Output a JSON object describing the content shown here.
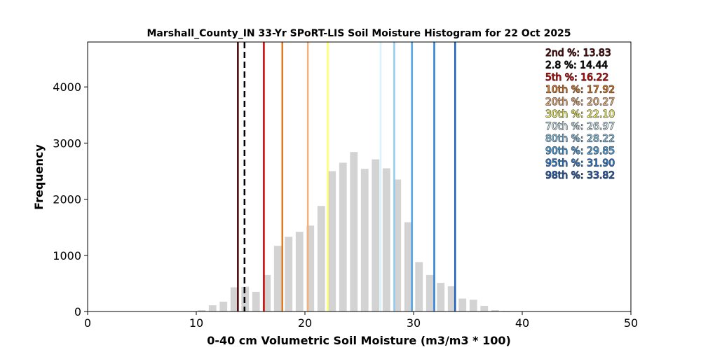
{
  "chart_data": {
    "type": "bar",
    "title": "Marshall_County_IN 33-Yr SPoRT-LIS Soil Moisture Histogram for 22 Oct 2025",
    "xlabel": "0-40 cm Volumetric Soil Moisture (m3/m3 * 100)",
    "ylabel": "Frequency",
    "xlim": [
      0,
      50
    ],
    "ylim": [
      0,
      4800
    ],
    "xticks": [
      "0",
      "10",
      "20",
      "30",
      "40",
      "50"
    ],
    "yticks": [
      "0",
      "1000",
      "2000",
      "3000",
      "4000"
    ],
    "bar_color": "#d3d3d3",
    "bin_width": 1.0,
    "bar_width": 0.7,
    "bins": [
      10.5,
      11.5,
      12.5,
      13.5,
      14.5,
      15.5,
      16.5,
      17.5,
      18.5,
      19.5,
      20.5,
      21.5,
      22.5,
      23.5,
      24.5,
      25.5,
      26.5,
      27.5,
      28.5,
      29.5,
      30.5,
      31.5,
      32.5,
      33.5,
      34.5,
      35.5,
      36.5,
      37.5,
      38.5
    ],
    "values": [
      25,
      110,
      175,
      430,
      440,
      350,
      650,
      1170,
      1330,
      1420,
      1530,
      1880,
      2500,
      2650,
      2840,
      2540,
      2710,
      2550,
      2350,
      1590,
      880,
      650,
      510,
      450,
      230,
      210,
      100,
      25,
      10
    ],
    "percentile_lines": [
      {
        "label": "2nd %: 13.83",
        "value": 13.83,
        "color": "#4a0000",
        "style": "solid"
      },
      {
        "label": "2.8 %: 14.44",
        "value": 14.44,
        "color": "#000000",
        "style": "dashed"
      },
      {
        "label": "5th %: 16.22",
        "value": 16.22,
        "color": "#cc0000",
        "style": "solid"
      },
      {
        "label": "10th %: 17.92",
        "value": 17.92,
        "color": "#e07b20",
        "style": "solid"
      },
      {
        "label": "20th %: 20.27",
        "value": 20.27,
        "color": "#f5b27a",
        "style": "solid"
      },
      {
        "label": "30th %: 22.10",
        "value": 22.1,
        "color": "#ffff66",
        "style": "solid"
      },
      {
        "label": "70th %: 26.97",
        "value": 26.97,
        "color": "#d8f3fb",
        "style": "solid"
      },
      {
        "label": "80th %: 28.22",
        "value": 28.22,
        "color": "#8fcdf0",
        "style": "solid"
      },
      {
        "label": "90th %: 29.85",
        "value": 29.85,
        "color": "#4aa3e8",
        "style": "solid"
      },
      {
        "label": "95th %: 31.90",
        "value": 31.9,
        "color": "#2b7fd9",
        "style": "solid"
      },
      {
        "label": "98th %: 33.82",
        "value": 33.82,
        "color": "#1f5fb8",
        "style": "solid"
      }
    ],
    "legend_placement": "top-right",
    "grid": false
  }
}
